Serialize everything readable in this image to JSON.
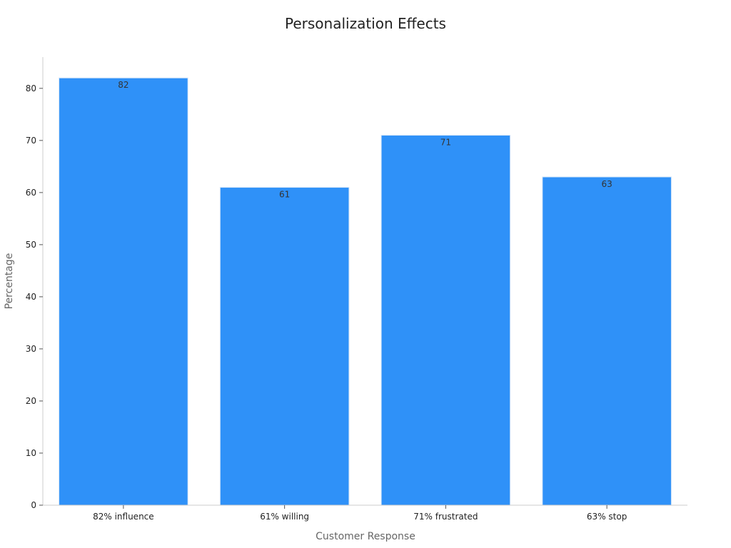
{
  "chart_data": {
    "type": "bar",
    "title": "Personalization Effects",
    "xlabel": "Customer Response",
    "ylabel": "Percentage",
    "categories": [
      "82% influence",
      "61% willing",
      "71% frustrated",
      "63% stop"
    ],
    "values": [
      82,
      61,
      71,
      63
    ],
    "data_labels": [
      "82",
      "61",
      "71",
      "63"
    ],
    "ylim": [
      0,
      86
    ],
    "yticks": [
      0,
      10,
      20,
      30,
      40,
      50,
      60,
      70,
      80
    ],
    "grid": false,
    "legend": "none",
    "colors": {
      "bar_fill": "#2f91f8",
      "bar_edge": "#d6e6f8",
      "axis_line": "#cccccc"
    }
  }
}
